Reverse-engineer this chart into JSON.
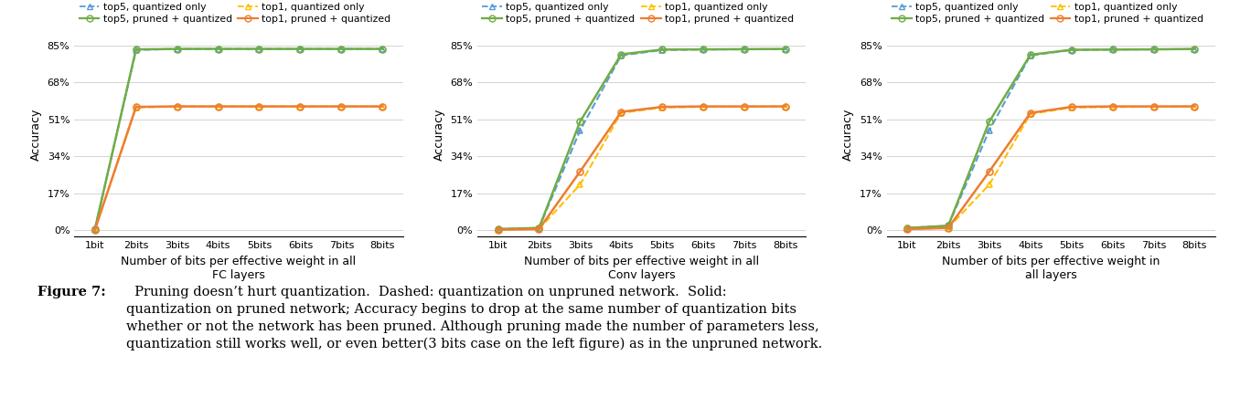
{
  "x_labels": [
    "1bit",
    "2bits",
    "3bits",
    "4bits",
    "5bits",
    "6bits",
    "7bits",
    "8bits"
  ],
  "x_values": [
    1,
    2,
    3,
    4,
    5,
    6,
    7,
    8
  ],
  "fc": {
    "top5_quant_only": [
      0.5,
      83.0,
      83.5,
      83.5,
      83.5,
      83.5,
      83.5,
      83.5
    ],
    "top5_pruned_quant": [
      0.5,
      83.3,
      83.5,
      83.5,
      83.5,
      83.5,
      83.5,
      83.5
    ],
    "top1_quant_only": [
      0.2,
      56.5,
      57.0,
      57.0,
      57.0,
      57.0,
      57.0,
      57.0
    ],
    "top1_pruned_quant": [
      0.2,
      56.8,
      57.0,
      57.0,
      57.0,
      57.0,
      57.0,
      57.0
    ],
    "xlabel1": "Number of bits per effective weight in all",
    "xlabel2": "FC layers"
  },
  "conv": {
    "top5_quant_only": [
      0.5,
      1.0,
      46.0,
      80.5,
      83.0,
      83.2,
      83.3,
      83.4
    ],
    "top5_pruned_quant": [
      0.5,
      1.0,
      50.0,
      81.0,
      83.2,
      83.3,
      83.4,
      83.5
    ],
    "top1_quant_only": [
      0.2,
      0.5,
      21.0,
      54.0,
      56.5,
      56.8,
      56.9,
      57.0
    ],
    "top1_pruned_quant": [
      0.2,
      0.5,
      27.0,
      54.5,
      56.8,
      57.0,
      57.0,
      57.0
    ],
    "xlabel1": "Number of bits per effective weight in all",
    "xlabel2": "Conv layers"
  },
  "all": {
    "top5_quant_only": [
      1.0,
      2.0,
      46.0,
      80.5,
      83.0,
      83.2,
      83.3,
      83.4
    ],
    "top5_pruned_quant": [
      1.0,
      2.0,
      50.0,
      80.8,
      83.1,
      83.2,
      83.3,
      83.5
    ],
    "top1_quant_only": [
      0.5,
      1.0,
      21.0,
      53.5,
      56.5,
      56.7,
      56.9,
      57.0
    ],
    "top1_pruned_quant": [
      0.5,
      1.0,
      27.0,
      54.0,
      56.8,
      57.0,
      57.0,
      57.0
    ],
    "xlabel1": "Number of bits per effective weight in",
    "xlabel2": "all layers"
  },
  "yticks": [
    0,
    17,
    34,
    51,
    68,
    85
  ],
  "ytick_labels": [
    "0%",
    "17%",
    "34%",
    "51%",
    "68%",
    "85%"
  ],
  "ylim": [
    -3,
    91
  ],
  "colors": {
    "top5_quant": "#5b9bd5",
    "top5_pruned": "#70ad47",
    "top1_quant": "#ffc000",
    "top1_pruned": "#ed7d31"
  },
  "caption_bold": "Figure 7:",
  "caption_rest": "  Pruning doesn’t hurt quantization.  Dashed: quantization on unpruned network.  Solid:\nquantization on pruned network; Accuracy begins to drop at the same number of quantization bits\nwhether or not the network has been pruned. Although pruning made the number of parameters less,\nquantization still works well, or even better(3 bits case on the left figure) as in the unpruned network."
}
